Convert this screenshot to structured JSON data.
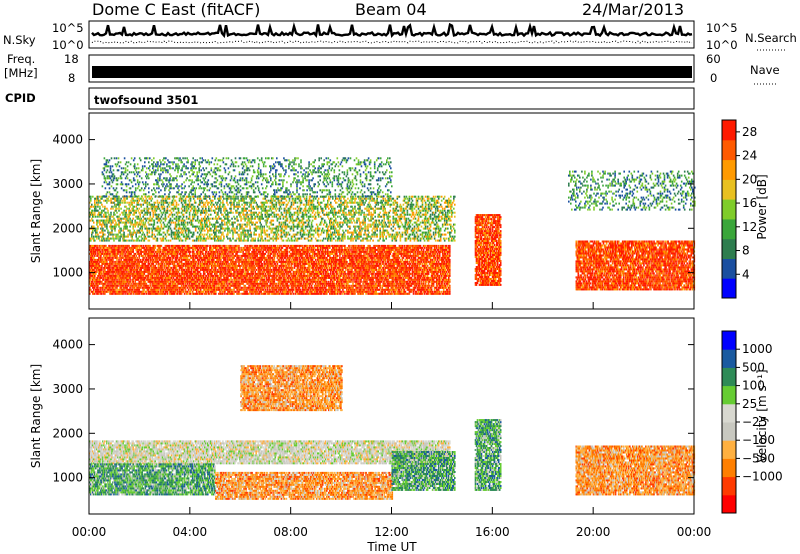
{
  "header": {
    "station": "Dome C East (fitACF)",
    "beam": "Beam 04",
    "date": "24/Mar/2013"
  },
  "strips": {
    "nsky_label": "N.Sky",
    "nsearch_label": "N.Search",
    "freq_label_1": "Freq.",
    "freq_label_2": "[MHz]",
    "nave_label": "Nave",
    "cpid_label": "CPID",
    "cpid_value": "twofsound 3501",
    "noise_ticks_left": [
      "10^5",
      "10^0"
    ],
    "noise_ticks_right": [
      "10^5",
      "10^0"
    ],
    "freq_ticks": [
      "18",
      "8"
    ],
    "nave_ticks": [
      "60",
      "0"
    ]
  },
  "colors": {
    "power": [
      "#0000ff",
      "#1a4fa0",
      "#2e7d4f",
      "#3aa63a",
      "#7fcc2a",
      "#e8c020",
      "#ff9a00",
      "#ff5a00",
      "#ff1a00"
    ],
    "velocity": [
      "#ff0000",
      "#ff3a00",
      "#ff7f00",
      "#ffb040",
      "#c8c8c0",
      "#d8d8d0",
      "#66cc33",
      "#2e8b57",
      "#1a5aa0",
      "#0000ff"
    ]
  },
  "chart_data": [
    {
      "type": "heatmap",
      "panel": "power",
      "ylabel": "Slant Range [km]",
      "ylim": [
        180,
        4600
      ],
      "yticks": [
        1000,
        2000,
        3000,
        4000
      ],
      "x_range_hours": [
        0,
        24
      ],
      "xticks": [
        "00:00",
        "04:00",
        "08:00",
        "12:00",
        "16:00",
        "20:00",
        "00:00"
      ],
      "colorbar": {
        "label": "Power [dB]",
        "ticks": [
          4,
          8,
          12,
          16,
          20,
          24,
          28
        ],
        "range": [
          0,
          30
        ]
      },
      "echo_regions": [
        {
          "t_start": 0.0,
          "t_end": 14.3,
          "range_low": 500,
          "range_high": 1600,
          "level": "high"
        },
        {
          "t_start": 0.0,
          "t_end": 14.5,
          "range_low": 1700,
          "range_high": 2700,
          "level": "medium"
        },
        {
          "t_start": 0.5,
          "t_end": 12.0,
          "range_low": 2700,
          "range_high": 3600,
          "level": "low"
        },
        {
          "t_start": 15.3,
          "t_end": 16.3,
          "range_low": 700,
          "range_high": 2300,
          "level": "high"
        },
        {
          "t_start": 19.3,
          "t_end": 24.0,
          "range_low": 600,
          "range_high": 1700,
          "level": "high"
        },
        {
          "t_start": 19.0,
          "t_end": 24.0,
          "range_low": 2400,
          "range_high": 3300,
          "level": "low"
        }
      ]
    },
    {
      "type": "heatmap",
      "panel": "velocity",
      "ylabel": "Slant Range [km]",
      "ylim": [
        180,
        4600
      ],
      "yticks": [
        1000,
        2000,
        3000,
        4000
      ],
      "x_range_hours": [
        0,
        24
      ],
      "xticks": [
        "00:00",
        "04:00",
        "08:00",
        "12:00",
        "16:00",
        "20:00",
        "00:00"
      ],
      "xlabel": "Time UT",
      "colorbar": {
        "label": "Velocity [m s⁻¹]",
        "ticks": [
          "1000",
          "500",
          "100",
          "25",
          "−25",
          "−100",
          "−500",
          "−1000"
        ]
      },
      "echo_regions": [
        {
          "t_start": 0.0,
          "t_end": 14.3,
          "range_low": 1300,
          "range_high": 1800,
          "level": "near-zero"
        },
        {
          "t_start": 0.0,
          "t_end": 5.0,
          "range_low": 600,
          "range_high": 1300,
          "level": "positive"
        },
        {
          "t_start": 5.0,
          "t_end": 12.0,
          "range_low": 500,
          "range_high": 1100,
          "level": "negative"
        },
        {
          "t_start": 12.0,
          "t_end": 14.5,
          "range_low": 700,
          "range_high": 1600,
          "level": "positive"
        },
        {
          "t_start": 6.0,
          "t_end": 10.0,
          "range_low": 2500,
          "range_high": 3500,
          "level": "negative"
        },
        {
          "t_start": 15.3,
          "t_end": 16.3,
          "range_low": 700,
          "range_high": 2300,
          "level": "positive"
        },
        {
          "t_start": 19.3,
          "t_end": 24.0,
          "range_low": 600,
          "range_high": 1700,
          "level": "negative"
        }
      ]
    }
  ]
}
